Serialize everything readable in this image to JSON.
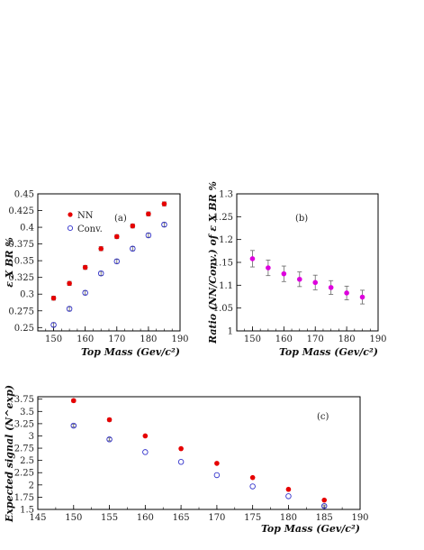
{
  "chart_data": [
    {
      "type": "scatter",
      "panel_label": "(a)",
      "xlabel": "Top Mass (Gev/c²)",
      "ylabel": "ε X BR %",
      "xlim": [
        145,
        190
      ],
      "ylim": [
        0.245,
        0.45
      ],
      "xticks": [
        150,
        160,
        170,
        180,
        190
      ],
      "yticks": [
        0.25,
        0.275,
        0.3,
        0.325,
        0.35,
        0.375,
        0.4,
        0.425,
        0.45
      ],
      "ytick_labels": [
        "0.25",
        "0.275",
        "0.3",
        "0.325",
        "0.35",
        "0.375",
        "0.4",
        "0.425",
        "0.45"
      ],
      "legend": [
        {
          "name": "NN",
          "marker": "filled-circle",
          "color": "#e60000"
        },
        {
          "name": "Conv.",
          "marker": "open-circle",
          "color": "#3333cc"
        }
      ],
      "series": [
        {
          "name": "NN",
          "marker": "filled-circle",
          "color": "#e60000",
          "x": [
            150,
            155,
            160,
            165,
            170,
            175,
            180,
            185
          ],
          "y": [
            0.294,
            0.316,
            0.34,
            0.368,
            0.386,
            0.402,
            0.42,
            0.435
          ],
          "err": [
            0.003,
            0.003,
            0.003,
            0.003,
            0.003,
            0.003,
            0.003,
            0.003
          ]
        },
        {
          "name": "Conv.",
          "marker": "open-circle",
          "color": "#3333cc",
          "x": [
            150,
            155,
            160,
            165,
            170,
            175,
            180,
            185
          ],
          "y": [
            0.254,
            0.278,
            0.302,
            0.331,
            0.349,
            0.368,
            0.388,
            0.404
          ],
          "err": [
            0.003,
            0.003,
            0.003,
            0.003,
            0.003,
            0.003,
            0.003,
            0.003
          ]
        }
      ]
    },
    {
      "type": "scatter",
      "panel_label": "(b)",
      "xlabel": "Top Mass (Gev/c²)",
      "ylabel": "Ratio (NN/Conv.) of ε X BR %",
      "xlim": [
        145,
        190
      ],
      "ylim": [
        1.0,
        1.3
      ],
      "xticks": [
        150,
        160,
        170,
        180,
        190
      ],
      "yticks": [
        1.0,
        1.05,
        1.1,
        1.15,
        1.2,
        1.25,
        1.3
      ],
      "ytick_labels": [
        "1",
        "1.05",
        "1.1",
        "1.15",
        "1.2",
        "1.25",
        "1.3"
      ],
      "series": [
        {
          "marker": "filled-circle",
          "color": "#dd00dd",
          "x": [
            150,
            155,
            160,
            165,
            170,
            175,
            180,
            185
          ],
          "y": [
            1.158,
            1.138,
            1.125,
            1.113,
            1.106,
            1.095,
            1.083,
            1.074
          ],
          "err": [
            0.018,
            0.017,
            0.017,
            0.016,
            0.016,
            0.015,
            0.015,
            0.015
          ]
        }
      ]
    },
    {
      "type": "scatter",
      "panel_label": "(c)",
      "xlabel": "Top Mass (Gev/c²)",
      "ylabel": "Expected signal (N^exp)",
      "xlim": [
        145,
        190
      ],
      "ylim": [
        1.5,
        3.8
      ],
      "xticks": [
        145,
        150,
        155,
        160,
        165,
        170,
        175,
        180,
        185,
        190
      ],
      "yticks": [
        1.5,
        1.75,
        2.0,
        2.25,
        2.5,
        2.75,
        3.0,
        3.25,
        3.5,
        3.75
      ],
      "ytick_labels": [
        "1.5",
        "1.75",
        "2",
        "2.25",
        "2.5",
        "2.75",
        "3",
        "3.25",
        "3.5",
        "3.75"
      ],
      "series": [
        {
          "marker": "filled-circle",
          "color": "#e60000",
          "x": [
            150,
            155,
            160,
            165,
            170,
            175,
            180,
            185
          ],
          "y": [
            3.72,
            3.33,
            3.0,
            2.74,
            2.44,
            2.15,
            1.91,
            1.69
          ],
          "err": [
            0.03,
            0.03,
            0,
            0,
            0,
            0,
            0,
            0
          ]
        },
        {
          "marker": "open-circle",
          "color": "#3333cc",
          "x": [
            150,
            155,
            160,
            165,
            170,
            175,
            180,
            185
          ],
          "y": [
            3.21,
            2.93,
            2.67,
            2.47,
            2.2,
            1.97,
            1.77,
            1.57
          ],
          "err": [
            0.03,
            0.03,
            0,
            0,
            0,
            0,
            0,
            0.02
          ]
        }
      ]
    }
  ]
}
